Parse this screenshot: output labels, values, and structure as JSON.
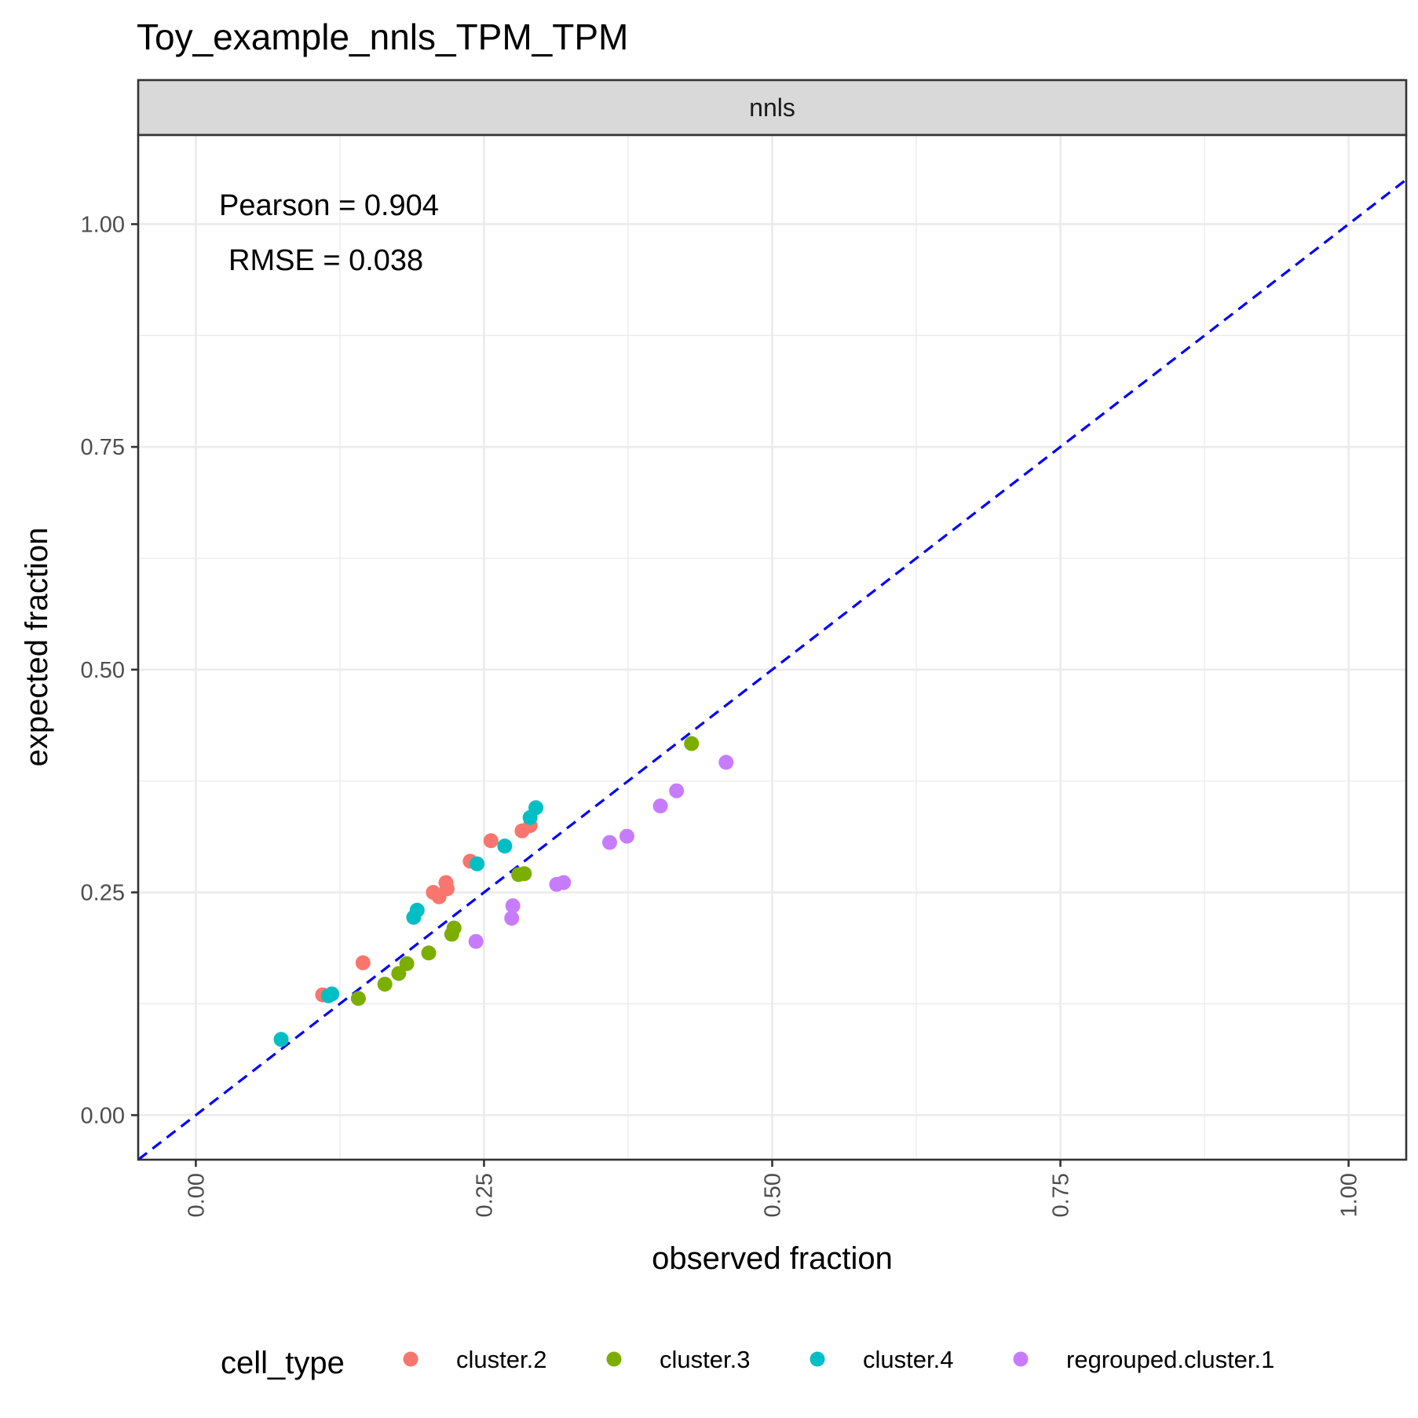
{
  "chart_data": {
    "type": "scatter",
    "title": "Toy_example_nnls_TPM_TPM",
    "facet_label": "nnls",
    "xlabel": "observed fraction",
    "ylabel": "expected fraction",
    "xlim": [
      -0.05,
      1.05
    ],
    "ylim": [
      -0.05,
      1.1
    ],
    "xticks": [
      {
        "value": 0.0,
        "label": "0.00"
      },
      {
        "value": 0.25,
        "label": "0.25"
      },
      {
        "value": 0.5,
        "label": "0.50"
      },
      {
        "value": 0.75,
        "label": "0.75"
      },
      {
        "value": 1.0,
        "label": "1.00"
      }
    ],
    "yticks": [
      {
        "value": 0.0,
        "label": "0.00"
      },
      {
        "value": 0.25,
        "label": "0.25"
      },
      {
        "value": 0.5,
        "label": "0.50"
      },
      {
        "value": 0.75,
        "label": "0.75"
      },
      {
        "value": 1.0,
        "label": "1.00"
      }
    ],
    "grid": true,
    "reference_line": {
      "slope": 1,
      "intercept": 0,
      "style": "dashed",
      "color": "#0000ff"
    },
    "annotations": [
      "Pearson = 0.904",
      "RMSE = 0.038"
    ],
    "legend": {
      "title": "cell_type",
      "position": "bottom"
    },
    "series": [
      {
        "name": "cluster.2",
        "color": "#f8766d",
        "points": [
          [
            0.11,
            0.135
          ],
          [
            0.145,
            0.171
          ],
          [
            0.206,
            0.25
          ],
          [
            0.211,
            0.245
          ],
          [
            0.217,
            0.261
          ],
          [
            0.218,
            0.254
          ],
          [
            0.238,
            0.285
          ],
          [
            0.256,
            0.308
          ],
          [
            0.283,
            0.319
          ],
          [
            0.29,
            0.325
          ]
        ]
      },
      {
        "name": "cluster.3",
        "color": "#7cae00",
        "points": [
          [
            0.141,
            0.131
          ],
          [
            0.164,
            0.147
          ],
          [
            0.176,
            0.159
          ],
          [
            0.183,
            0.17
          ],
          [
            0.202,
            0.182
          ],
          [
            0.222,
            0.203
          ],
          [
            0.224,
            0.21
          ],
          [
            0.28,
            0.27
          ],
          [
            0.285,
            0.271
          ],
          [
            0.43,
            0.417
          ]
        ]
      },
      {
        "name": "cluster.4",
        "color": "#00bfc4",
        "points": [
          [
            0.074,
            0.085
          ],
          [
            0.115,
            0.134
          ],
          [
            0.118,
            0.136
          ],
          [
            0.189,
            0.222
          ],
          [
            0.192,
            0.23
          ],
          [
            0.244,
            0.282
          ],
          [
            0.268,
            0.302
          ],
          [
            0.29,
            0.334
          ],
          [
            0.295,
            0.345
          ]
        ]
      },
      {
        "name": "regrouped.cluster.1",
        "color": "#c77cff",
        "points": [
          [
            0.243,
            0.195
          ],
          [
            0.274,
            0.221
          ],
          [
            0.275,
            0.235
          ],
          [
            0.313,
            0.259
          ],
          [
            0.319,
            0.261
          ],
          [
            0.359,
            0.306
          ],
          [
            0.374,
            0.313
          ],
          [
            0.403,
            0.347
          ],
          [
            0.417,
            0.364
          ],
          [
            0.46,
            0.396
          ]
        ]
      }
    ]
  }
}
